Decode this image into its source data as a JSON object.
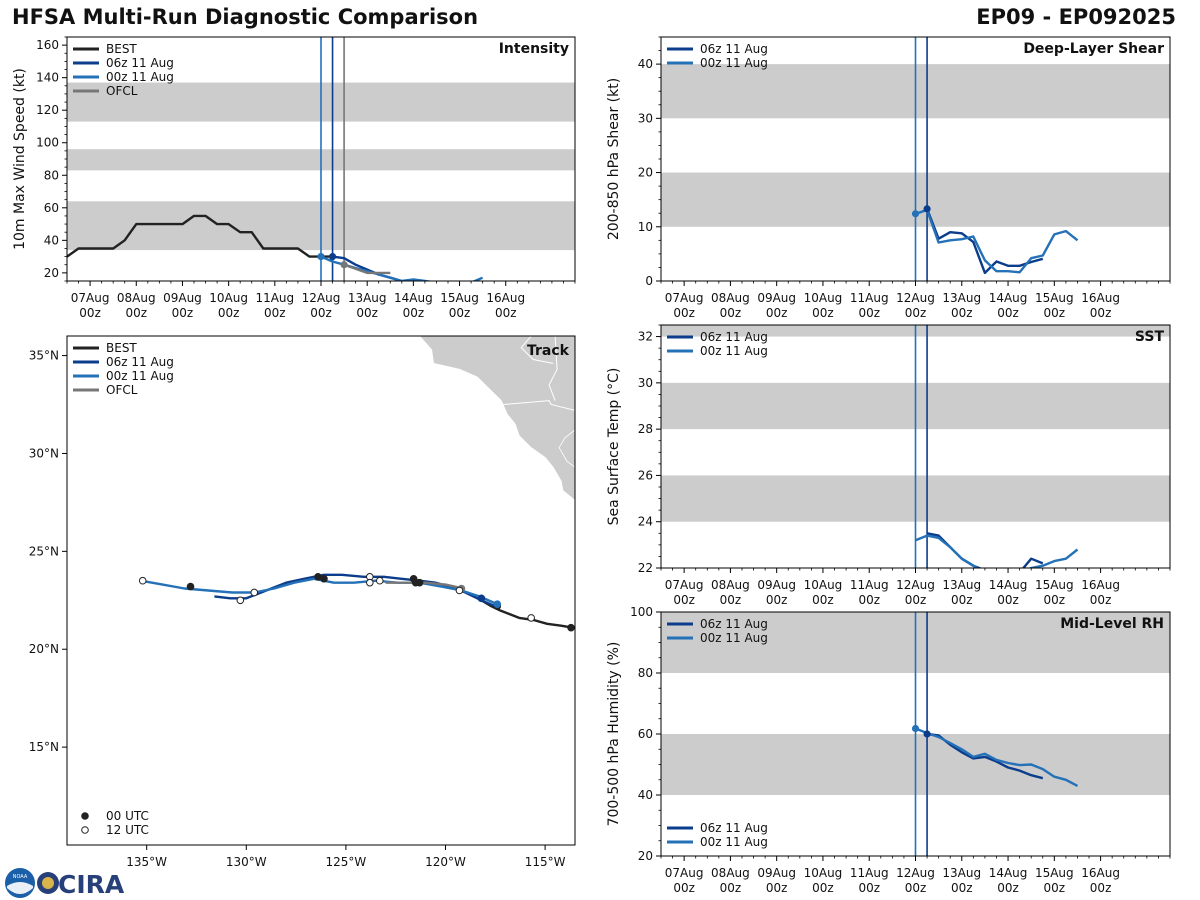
{
  "header": {
    "title": "HFSA Multi-Run Diagnostic Comparison",
    "storm_id": "EP09 - EP092025"
  },
  "colors": {
    "best": "#222222",
    "run06": "#0b3d8c",
    "run00": "#2471b8",
    "ofcl": "#777777",
    "band": "#cccccc",
    "land": "#cccccc"
  },
  "time_axis": {
    "tick_labels": [
      [
        "07Aug",
        "00z"
      ],
      [
        "08Aug",
        "00z"
      ],
      [
        "09Aug",
        "00z"
      ],
      [
        "10Aug",
        "00z"
      ],
      [
        "11Aug",
        "00z"
      ],
      [
        "12Aug",
        "00z"
      ],
      [
        "13Aug",
        "00z"
      ],
      [
        "14Aug",
        "00z"
      ],
      [
        "15Aug",
        "00z"
      ],
      [
        "16Aug",
        "00z"
      ]
    ]
  },
  "logo": {
    "text": "CIRA",
    "badge_text": "NOAA"
  },
  "chart_data": [
    {
      "id": "intensity",
      "type": "line",
      "title": "Intensity",
      "ylabel": "10m Max Wind Speed (kt)",
      "xlim": [
        -0.5,
        10.5
      ],
      "ylim": [
        15,
        165
      ],
      "yticks": [
        20,
        40,
        60,
        80,
        100,
        120,
        140,
        160
      ],
      "bands": [
        [
          34,
          64
        ],
        [
          83,
          96
        ],
        [
          113,
          137
        ]
      ],
      "vlines": [
        {
          "x": 5.0,
          "color": "run00"
        },
        {
          "x": 5.25,
          "color": "run06"
        },
        {
          "x": 5.5,
          "color": "ofcl"
        }
      ],
      "legend": [
        {
          "label": "BEST",
          "color": "best"
        },
        {
          "label": "06z 11 Aug",
          "color": "run06"
        },
        {
          "label": "00z 11 Aug",
          "color": "run00"
        },
        {
          "label": "OFCL",
          "color": "ofcl"
        }
      ],
      "series": [
        {
          "name": "BEST",
          "color": "best",
          "x": [
            -0.5,
            -0.25,
            0,
            0.25,
            0.5,
            0.75,
            1,
            1.25,
            1.5,
            1.75,
            2,
            2.25,
            2.5,
            2.75,
            3,
            3.25,
            3.5,
            3.75,
            4,
            4.25,
            4.5,
            4.75,
            5,
            5.25
          ],
          "y": [
            30,
            35,
            35,
            35,
            35,
            40,
            50,
            50,
            50,
            50,
            50,
            55,
            55,
            50,
            50,
            45,
            45,
            35,
            35,
            35,
            35,
            30,
            30,
            30
          ]
        },
        {
          "name": "06z 11 Aug",
          "color": "run06",
          "x": [
            5.25,
            5.5,
            5.75,
            6,
            6.25,
            6.5,
            6.75,
            7,
            7.25
          ],
          "y": [
            30,
            29,
            25,
            22,
            19,
            17,
            15,
            14,
            13
          ]
        },
        {
          "name": "00z 11 Aug",
          "color": "run00",
          "x": [
            5,
            5.25,
            5.5,
            5.75,
            6,
            6.25,
            6.5,
            6.75,
            7,
            7.25,
            7.5,
            7.75,
            8,
            8.25,
            8.5
          ],
          "y": [
            30,
            27,
            25,
            23,
            21,
            19,
            17,
            15,
            16,
            15,
            14,
            13,
            13,
            14,
            17
          ]
        },
        {
          "name": "OFCL",
          "color": "ofcl",
          "x": [
            5.5,
            6,
            6.5
          ],
          "y": [
            25,
            20,
            20
          ]
        }
      ],
      "markers": [
        {
          "x": 5.25,
          "y": 30,
          "color": "run06"
        },
        {
          "x": 5,
          "y": 30,
          "color": "run00"
        },
        {
          "x": 5.5,
          "y": 25,
          "color": "ofcl"
        }
      ]
    },
    {
      "id": "shear",
      "type": "line",
      "title": "Deep-Layer Shear",
      "ylabel": "200-850 hPa Shear (kt)",
      "xlim": [
        -0.5,
        10.5
      ],
      "ylim": [
        0,
        45
      ],
      "yticks": [
        0,
        10,
        20,
        30,
        40
      ],
      "bands": [
        [
          10,
          20
        ],
        [
          30,
          40
        ]
      ],
      "vlines": [
        {
          "x": 5.0,
          "color": "run00"
        },
        {
          "x": 5.25,
          "color": "run06"
        }
      ],
      "legend": [
        {
          "label": "06z 11 Aug",
          "color": "run06"
        },
        {
          "label": "00z 11 Aug",
          "color": "run00"
        }
      ],
      "series": [
        {
          "name": "06z 11 Aug",
          "color": "run06",
          "x": [
            5.25,
            5.5,
            5.75,
            6,
            6.25,
            6.5,
            6.75,
            7,
            7.25,
            7.5,
            7.75
          ],
          "y": [
            13.3,
            7.8,
            9,
            8.8,
            7.2,
            1.5,
            3.6,
            2.8,
            2.8,
            3.5,
            4.1
          ]
        },
        {
          "name": "00z 11 Aug",
          "color": "run00",
          "x": [
            5,
            5.25,
            5.5,
            5.75,
            6,
            6.25,
            6.5,
            6.75,
            7,
            7.25,
            7.5,
            7.75,
            8,
            8.25,
            8.5
          ],
          "y": [
            12.4,
            13.1,
            7.1,
            7.5,
            7.7,
            8.2,
            3.8,
            1.8,
            1.8,
            1.6,
            4.2,
            4.7,
            8.6,
            9.2,
            7.5
          ]
        }
      ],
      "markers": [
        {
          "x": 5.25,
          "y": 13.3,
          "color": "run06"
        },
        {
          "x": 5,
          "y": 12.4,
          "color": "run00"
        }
      ]
    },
    {
      "id": "sst",
      "type": "line",
      "title": "SST",
      "ylabel": "Sea Surface Temp (°C)",
      "xlim": [
        -0.5,
        10.5
      ],
      "ylim": [
        22,
        32.5
      ],
      "yticks": [
        22,
        24,
        26,
        28,
        30,
        32
      ],
      "bands": [
        [
          24,
          26
        ],
        [
          28,
          30
        ],
        [
          32,
          34
        ]
      ],
      "vlines": [
        {
          "x": 5.0,
          "color": "run00"
        },
        {
          "x": 5.25,
          "color": "run06"
        }
      ],
      "legend": [
        {
          "label": "06z 11 Aug",
          "color": "run06"
        },
        {
          "label": "00z 11 Aug",
          "color": "run00"
        }
      ],
      "series": [
        {
          "name": "06z 11 Aug",
          "color": "run06",
          "x": [
            5.25,
            5.5,
            5.75,
            6,
            6.25,
            6.5,
            6.75,
            7,
            7.25,
            7.5,
            7.75
          ],
          "y": [
            23.5,
            23.4,
            22.9,
            22.4,
            22.1,
            21.9,
            21.7,
            21.7,
            21.8,
            22.4,
            22.2
          ]
        },
        {
          "name": "00z 11 Aug",
          "color": "run00",
          "x": [
            5,
            5.25,
            5.5,
            5.75,
            6,
            6.25,
            6.5,
            6.75,
            7,
            7.25,
            7.5,
            7.75,
            8,
            8.25,
            8.5
          ],
          "y": [
            23.2,
            23.4,
            23.3,
            22.9,
            22.4,
            22.1,
            21.8,
            21.7,
            21.7,
            21.8,
            22.0,
            22.1,
            22.3,
            22.4,
            22.8
          ]
        }
      ],
      "markers": []
    },
    {
      "id": "rh",
      "type": "line",
      "title": "Mid-Level RH",
      "ylabel": "700-500 hPa Humidity (%)",
      "xlim": [
        -0.5,
        10.5
      ],
      "ylim": [
        20,
        100
      ],
      "yticks": [
        20,
        40,
        60,
        80,
        100
      ],
      "bands": [
        [
          40,
          60
        ],
        [
          80,
          100
        ]
      ],
      "vlines": [
        {
          "x": 5.0,
          "color": "run00"
        },
        {
          "x": 5.25,
          "color": "run06"
        }
      ],
      "legend": [
        {
          "label": "06z 11 Aug",
          "color": "run06"
        },
        {
          "label": "00z 11 Aug",
          "color": "run00"
        }
      ],
      "series": [
        {
          "name": "06z 11 Aug",
          "color": "run06",
          "x": [
            5.25,
            5.5,
            5.75,
            6,
            6.25,
            6.5,
            6.75,
            7,
            7.25,
            7.5,
            7.75
          ],
          "y": [
            60,
            59.5,
            56.5,
            54,
            52,
            52.5,
            51,
            49,
            48,
            46.5,
            45.5
          ]
        },
        {
          "name": "00z 11 Aug",
          "color": "run00",
          "x": [
            5,
            5.25,
            5.5,
            5.75,
            6,
            6.25,
            6.5,
            6.75,
            7,
            7.25,
            7.5,
            7.75,
            8,
            8.25,
            8.5
          ],
          "y": [
            61.8,
            60.3,
            59,
            57,
            55,
            52.5,
            53.5,
            51.5,
            50.5,
            49.8,
            50,
            48.5,
            46,
            45,
            43
          ]
        }
      ],
      "markers": [
        {
          "x": 5.25,
          "y": 60,
          "color": "run06"
        },
        {
          "x": 5,
          "y": 61.8,
          "color": "run00"
        }
      ]
    },
    {
      "id": "track",
      "type": "scatter",
      "title": "Track",
      "lonlim": [
        -139,
        -113.5
      ],
      "latlim": [
        10,
        36
      ],
      "lon_ticks": [
        {
          "v": -135,
          "label": "135°W"
        },
        {
          "v": -130,
          "label": "130°W"
        },
        {
          "v": -125,
          "label": "125°W"
        },
        {
          "v": -120,
          "label": "120°W"
        },
        {
          "v": -115,
          "label": "115°W"
        }
      ],
      "lat_ticks": [
        {
          "v": 15,
          "label": "15°N"
        },
        {
          "v": 20,
          "label": "20°N"
        },
        {
          "v": 25,
          "label": "25°N"
        },
        {
          "v": 30,
          "label": "30°N"
        },
        {
          "v": 35,
          "label": "35°N"
        }
      ],
      "legend": [
        {
          "label": "BEST",
          "color": "best"
        },
        {
          "label": "06z 11 Aug",
          "color": "run06"
        },
        {
          "label": "00z 11 Aug",
          "color": "run00"
        },
        {
          "label": "OFCL",
          "color": "ofcl"
        }
      ],
      "marker_legend": [
        {
          "label": "00 UTC",
          "filled": true
        },
        {
          "label": "12 UTC",
          "filled": false
        }
      ],
      "land": [
        [
          [
            -121.3,
            36
          ],
          [
            -120.7,
            35.3
          ],
          [
            -120.6,
            34.6
          ],
          [
            -119.3,
            34.3
          ],
          [
            -118.4,
            33.9
          ],
          [
            -117.9,
            33.4
          ],
          [
            -117.2,
            32.7
          ],
          [
            -116.9,
            32
          ],
          [
            -116.5,
            31.5
          ],
          [
            -116.3,
            30.9
          ],
          [
            -115.7,
            30.3
          ],
          [
            -115,
            29.8
          ],
          [
            -114.6,
            29.3
          ],
          [
            -114.2,
            28.6
          ],
          [
            -114.1,
            28.1
          ],
          [
            -113.5,
            27.6
          ],
          [
            -113.5,
            36
          ]
        ],
        [
          [
            -113.5,
            31.2
          ],
          [
            -114,
            30.8
          ],
          [
            -114.3,
            30.3
          ],
          [
            -113.9,
            29.6
          ],
          [
            -113.5,
            29.3
          ]
        ]
      ],
      "borders": [
        [
          [
            -117.1,
            32.5
          ],
          [
            -114.8,
            32.7
          ],
          [
            -114.7,
            32.5
          ],
          [
            -113.5,
            32.2
          ]
        ],
        [
          [
            -115.7,
            36
          ],
          [
            -116.2,
            35.4
          ],
          [
            -115.6,
            34.8
          ],
          [
            -114.6,
            34.6
          ]
        ],
        [
          [
            -114.5,
            36
          ],
          [
            -114.4,
            34.3
          ],
          [
            -114.8,
            33.5
          ],
          [
            -114.5,
            32.7
          ]
        ]
      ],
      "series": [
        {
          "name": "BEST",
          "color": "best",
          "lon": [
            -113.6,
            -114.2,
            -114.9,
            -115.6,
            -116.3,
            -116.8,
            -117.3,
            -117.7,
            -118.2
          ],
          "lat": [
            21.1,
            21.2,
            21.3,
            21.5,
            21.6,
            21.8,
            22.0,
            22.2,
            22.5
          ]
        },
        {
          "name": "06z 11 Aug",
          "color": "run06",
          "lon": [
            -117.5,
            -118.2,
            -119,
            -119.8,
            -120.5,
            -121.3,
            -122.2,
            -123.1,
            -124.1,
            -125.2,
            -126.1,
            -127.1,
            -128,
            -129,
            -130,
            -130.8,
            -131.6
          ],
          "lat": [
            22.2,
            22.5,
            22.9,
            23.2,
            23.4,
            23.5,
            23.6,
            23.7,
            23.7,
            23.8,
            23.8,
            23.6,
            23.4,
            23.0,
            22.6,
            22.6,
            22.7
          ]
        },
        {
          "name": "00z 11 Aug",
          "color": "run00",
          "lon": [
            -117.4,
            -118.3,
            -119.2,
            -120.2,
            -121.3,
            -122.4,
            -123.5,
            -124.6,
            -125.6,
            -126.6,
            -127.6,
            -128.6,
            -129.6,
            -130.7,
            -131.9,
            -133.1,
            -134.2,
            -135.3
          ],
          "lat": [
            22.3,
            22.7,
            23.0,
            23.2,
            23.4,
            23.4,
            23.5,
            23.4,
            23.4,
            23.6,
            23.4,
            23.1,
            22.9,
            22.9,
            23.0,
            23.1,
            23.3,
            23.5
          ]
        },
        {
          "name": "OFCL",
          "color": "ofcl",
          "lon": [
            -119.1,
            -120,
            -121,
            -122,
            -123
          ],
          "lat": [
            23.1,
            23.3,
            23.4,
            23.4,
            23.4
          ]
        }
      ],
      "points": [
        {
          "lon": -113.7,
          "lat": 21.1,
          "filled": true,
          "color": "best"
        },
        {
          "lon": -115.7,
          "lat": 21.6,
          "filled": false,
          "color": "best"
        },
        {
          "lon": -117.4,
          "lat": 22.2,
          "filled": true,
          "color": "best"
        },
        {
          "lon": -117.4,
          "lat": 22.3,
          "filled": true,
          "color": "run00"
        },
        {
          "lon": -118.2,
          "lat": 22.6,
          "filled": true,
          "color": "run06"
        },
        {
          "lon": -119.2,
          "lat": 23.1,
          "filled": true,
          "color": "ofcl"
        },
        {
          "lon": -119.3,
          "lat": 23.0,
          "filled": false,
          "color": "best"
        },
        {
          "lon": -121.3,
          "lat": 23.4,
          "filled": true,
          "color": "best"
        },
        {
          "lon": -121.6,
          "lat": 23.6,
          "filled": true,
          "color": "best"
        },
        {
          "lon": -121.5,
          "lat": 23.4,
          "filled": true,
          "color": "best"
        },
        {
          "lon": -123.3,
          "lat": 23.5,
          "filled": false,
          "color": "best"
        },
        {
          "lon": -123.8,
          "lat": 23.7,
          "filled": false,
          "color": "best"
        },
        {
          "lon": -123.8,
          "lat": 23.4,
          "filled": false,
          "color": "best"
        },
        {
          "lon": -126.1,
          "lat": 23.6,
          "filled": true,
          "color": "best"
        },
        {
          "lon": -126.4,
          "lat": 23.7,
          "filled": true,
          "color": "best"
        },
        {
          "lon": -129.6,
          "lat": 22.9,
          "filled": false,
          "color": "best"
        },
        {
          "lon": -130.3,
          "lat": 22.5,
          "filled": false,
          "color": "best"
        },
        {
          "lon": -132.8,
          "lat": 23.2,
          "filled": true,
          "color": "best"
        },
        {
          "lon": -135.2,
          "lat": 23.5,
          "filled": false,
          "color": "best"
        }
      ]
    }
  ]
}
